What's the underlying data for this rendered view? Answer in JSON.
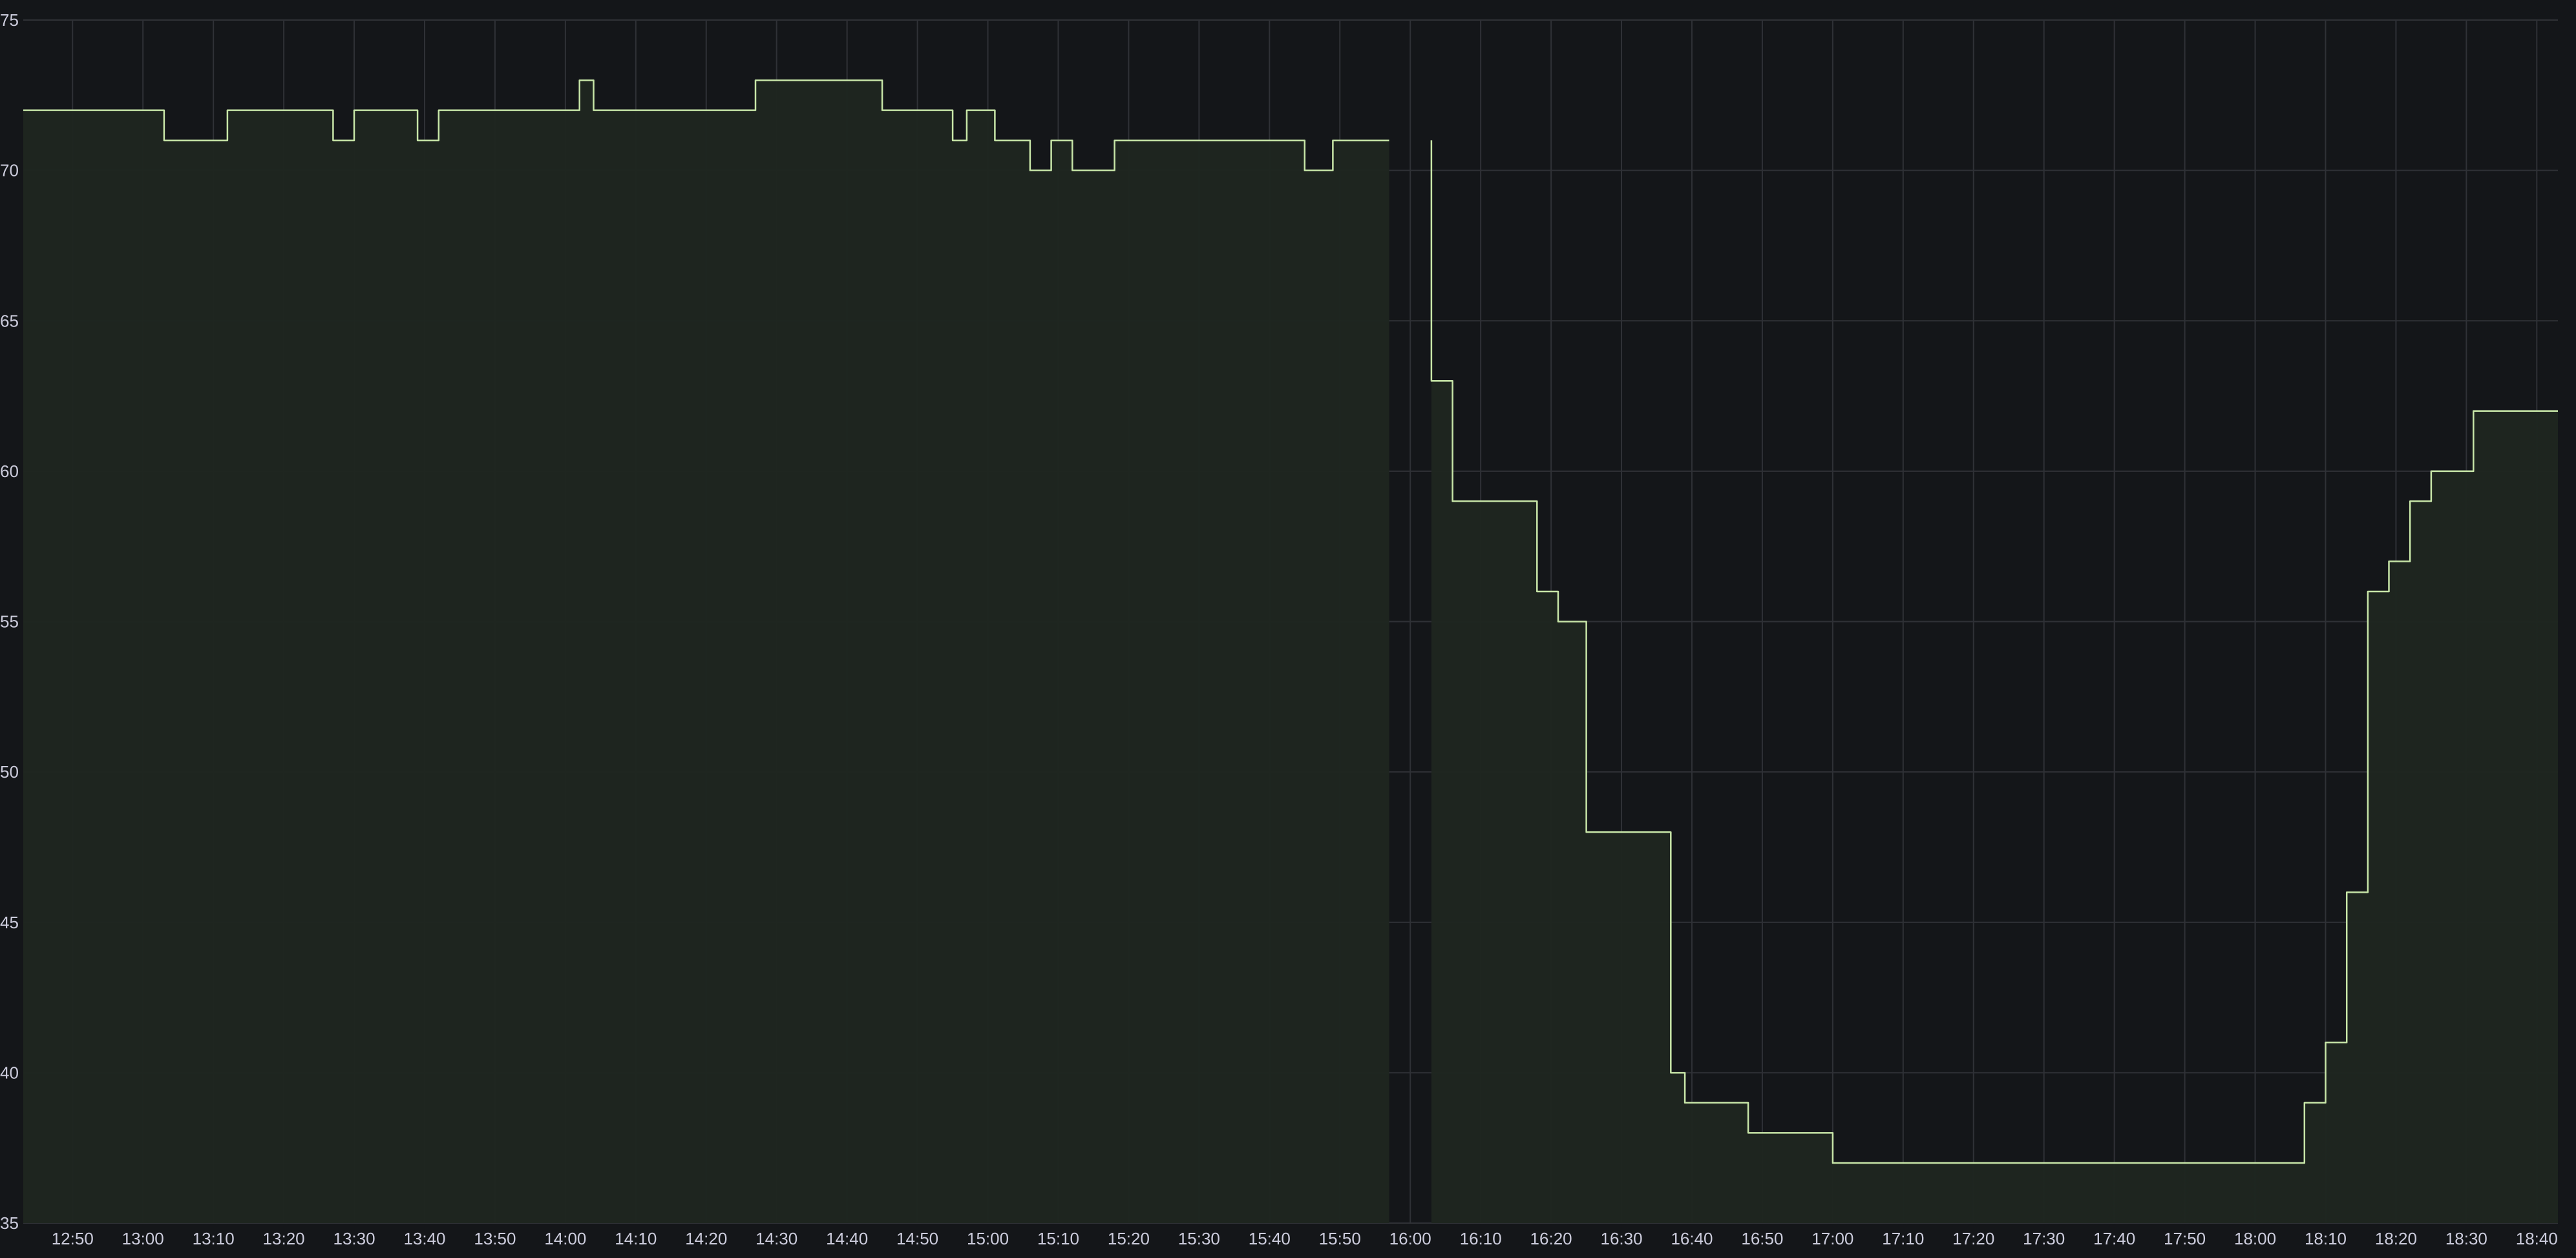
{
  "chart_data": {
    "type": "area",
    "title": "",
    "xlabel": "",
    "ylabel": "",
    "ylim": [
      35,
      75
    ],
    "yticks": [
      35,
      40,
      45,
      50,
      55,
      60,
      65,
      70,
      75
    ],
    "xticks": [
      "12:50",
      "13:00",
      "13:10",
      "13:20",
      "13:30",
      "13:40",
      "13:50",
      "14:00",
      "14:10",
      "14:20",
      "14:30",
      "14:40",
      "14:50",
      "15:00",
      "15:10",
      "15:20",
      "15:30",
      "15:40",
      "15:50",
      "16:00",
      "16:10",
      "16:20",
      "16:30",
      "16:40",
      "16:50",
      "17:00",
      "17:10",
      "17:20",
      "17:30",
      "17:40",
      "17:50",
      "18:00",
      "18:10",
      "18:20",
      "18:30",
      "18:40"
    ],
    "xrange": [
      "12:43",
      "18:43"
    ],
    "grid": true,
    "legend": "none",
    "line_color": "#c8e6a8",
    "fill_color": "#1f2620",
    "series": [
      {
        "segments": [
          [
            [
              "12:43",
              72
            ],
            [
              "13:03",
              72
            ],
            [
              "13:03",
              71
            ],
            [
              "13:12",
              71
            ],
            [
              "13:12",
              72
            ],
            [
              "13:27",
              72
            ],
            [
              "13:27",
              71
            ],
            [
              "13:30",
              71
            ],
            [
              "13:30",
              72
            ],
            [
              "13:39",
              72
            ],
            [
              "13:39",
              71
            ],
            [
              "13:42",
              71
            ],
            [
              "13:42",
              72
            ],
            [
              "14:02",
              72
            ],
            [
              "14:02",
              73
            ],
            [
              "14:04",
              73
            ],
            [
              "14:04",
              72
            ],
            [
              "14:27",
              72
            ],
            [
              "14:27",
              73
            ],
            [
              "14:45",
              73
            ],
            [
              "14:45",
              72
            ],
            [
              "14:55",
              72
            ],
            [
              "14:55",
              71
            ],
            [
              "14:57",
              71
            ],
            [
              "14:57",
              72
            ],
            [
              "15:01",
              72
            ],
            [
              "15:01",
              71
            ],
            [
              "15:06",
              71
            ],
            [
              "15:06",
              70
            ],
            [
              "15:09",
              70
            ],
            [
              "15:09",
              71
            ],
            [
              "15:12",
              71
            ],
            [
              "15:12",
              70
            ],
            [
              "15:18",
              70
            ],
            [
              "15:18",
              71
            ],
            [
              "15:45",
              71
            ],
            [
              "15:45",
              70
            ],
            [
              "15:49",
              70
            ],
            [
              "15:49",
              71
            ],
            [
              "15:57",
              71
            ]
          ],
          [
            [
              "16:03",
              71
            ],
            [
              "16:03",
              63
            ],
            [
              "16:06",
              63
            ],
            [
              "16:06",
              59
            ],
            [
              "16:18",
              59
            ],
            [
              "16:18",
              56
            ],
            [
              "16:21",
              56
            ],
            [
              "16:21",
              55
            ],
            [
              "16:25",
              55
            ],
            [
              "16:25",
              48
            ],
            [
              "16:37",
              48
            ],
            [
              "16:37",
              40
            ],
            [
              "16:39",
              40
            ],
            [
              "16:39",
              39
            ],
            [
              "16:48",
              39
            ],
            [
              "16:48",
              38
            ],
            [
              "17:00",
              38
            ],
            [
              "17:00",
              37
            ],
            [
              "18:07",
              37
            ],
            [
              "18:07",
              39
            ],
            [
              "18:10",
              39
            ],
            [
              "18:10",
              41
            ],
            [
              "18:13",
              41
            ],
            [
              "18:13",
              46
            ],
            [
              "18:16",
              46
            ],
            [
              "18:16",
              56
            ],
            [
              "18:19",
              56
            ],
            [
              "18:19",
              57
            ],
            [
              "18:22",
              57
            ],
            [
              "18:22",
              59
            ],
            [
              "18:25",
              59
            ],
            [
              "18:25",
              60
            ],
            [
              "18:31",
              60
            ],
            [
              "18:31",
              62
            ],
            [
              "18:43",
              62
            ]
          ]
        ]
      }
    ]
  }
}
